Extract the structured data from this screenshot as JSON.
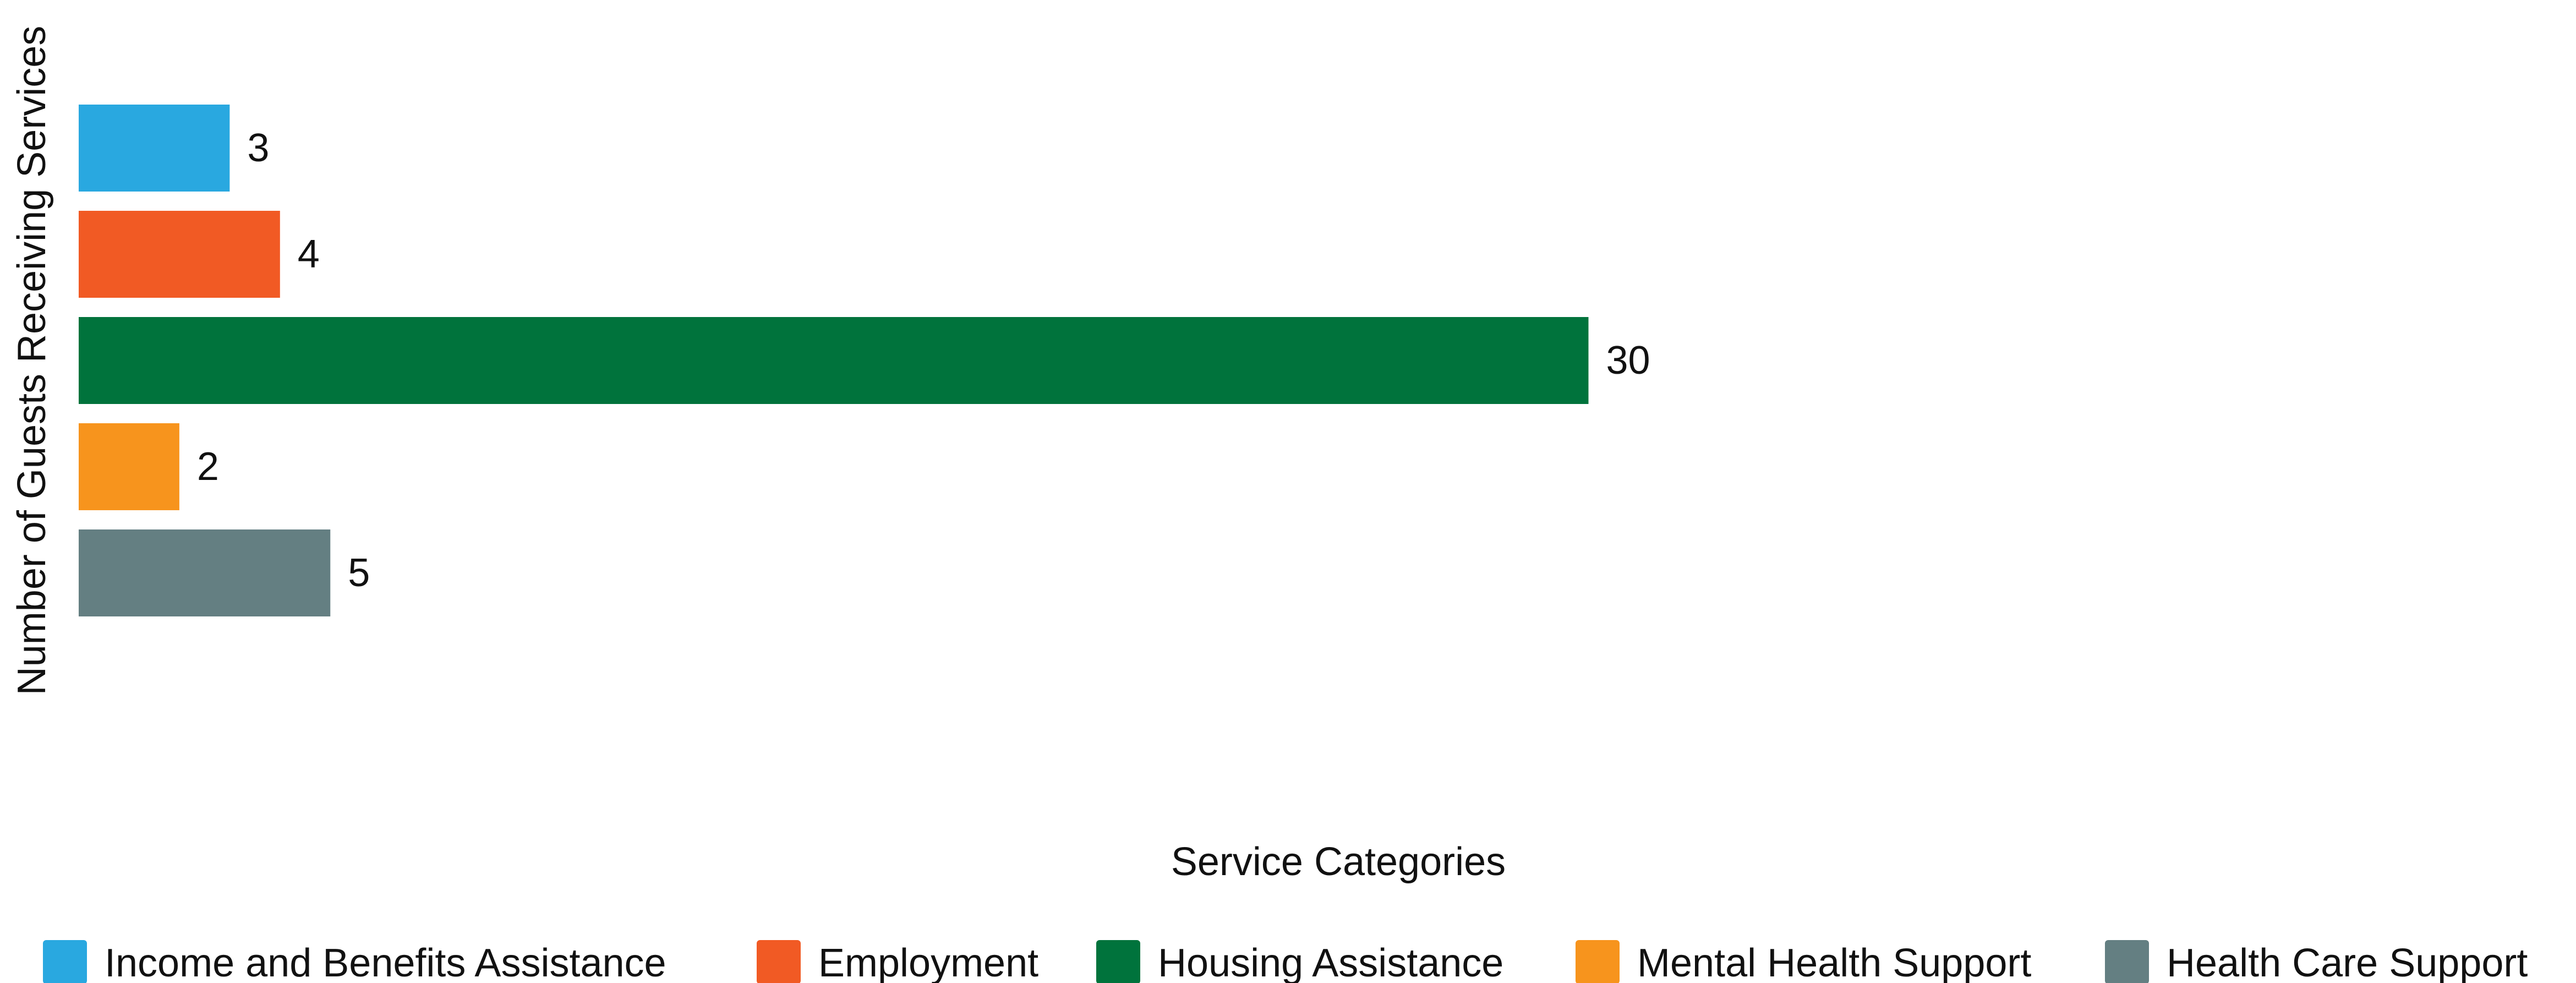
{
  "chart_data": {
    "type": "bar",
    "orientation": "horizontal",
    "categories": [
      "Income and Benefits Assistance",
      "Employment",
      "Housing Assistance",
      "Mental Health Support",
      "Health Care Support"
    ],
    "values": [
      3,
      4,
      30,
      2,
      5
    ],
    "colors": [
      "#29a8e0",
      "#f15a24",
      "#00733c",
      "#f7941d",
      "#647f82"
    ],
    "xlabel": "Service Categories",
    "ylabel": "Number of Guests Receiving Services",
    "xlim": [
      0,
      50
    ],
    "grid": false,
    "data_labels": true,
    "legend": {
      "position": "bottom",
      "entries": [
        "Income and Benefits Assistance",
        "Employment",
        "Housing Assistance",
        "Mental Health Support",
        "Health Care Support"
      ]
    }
  }
}
